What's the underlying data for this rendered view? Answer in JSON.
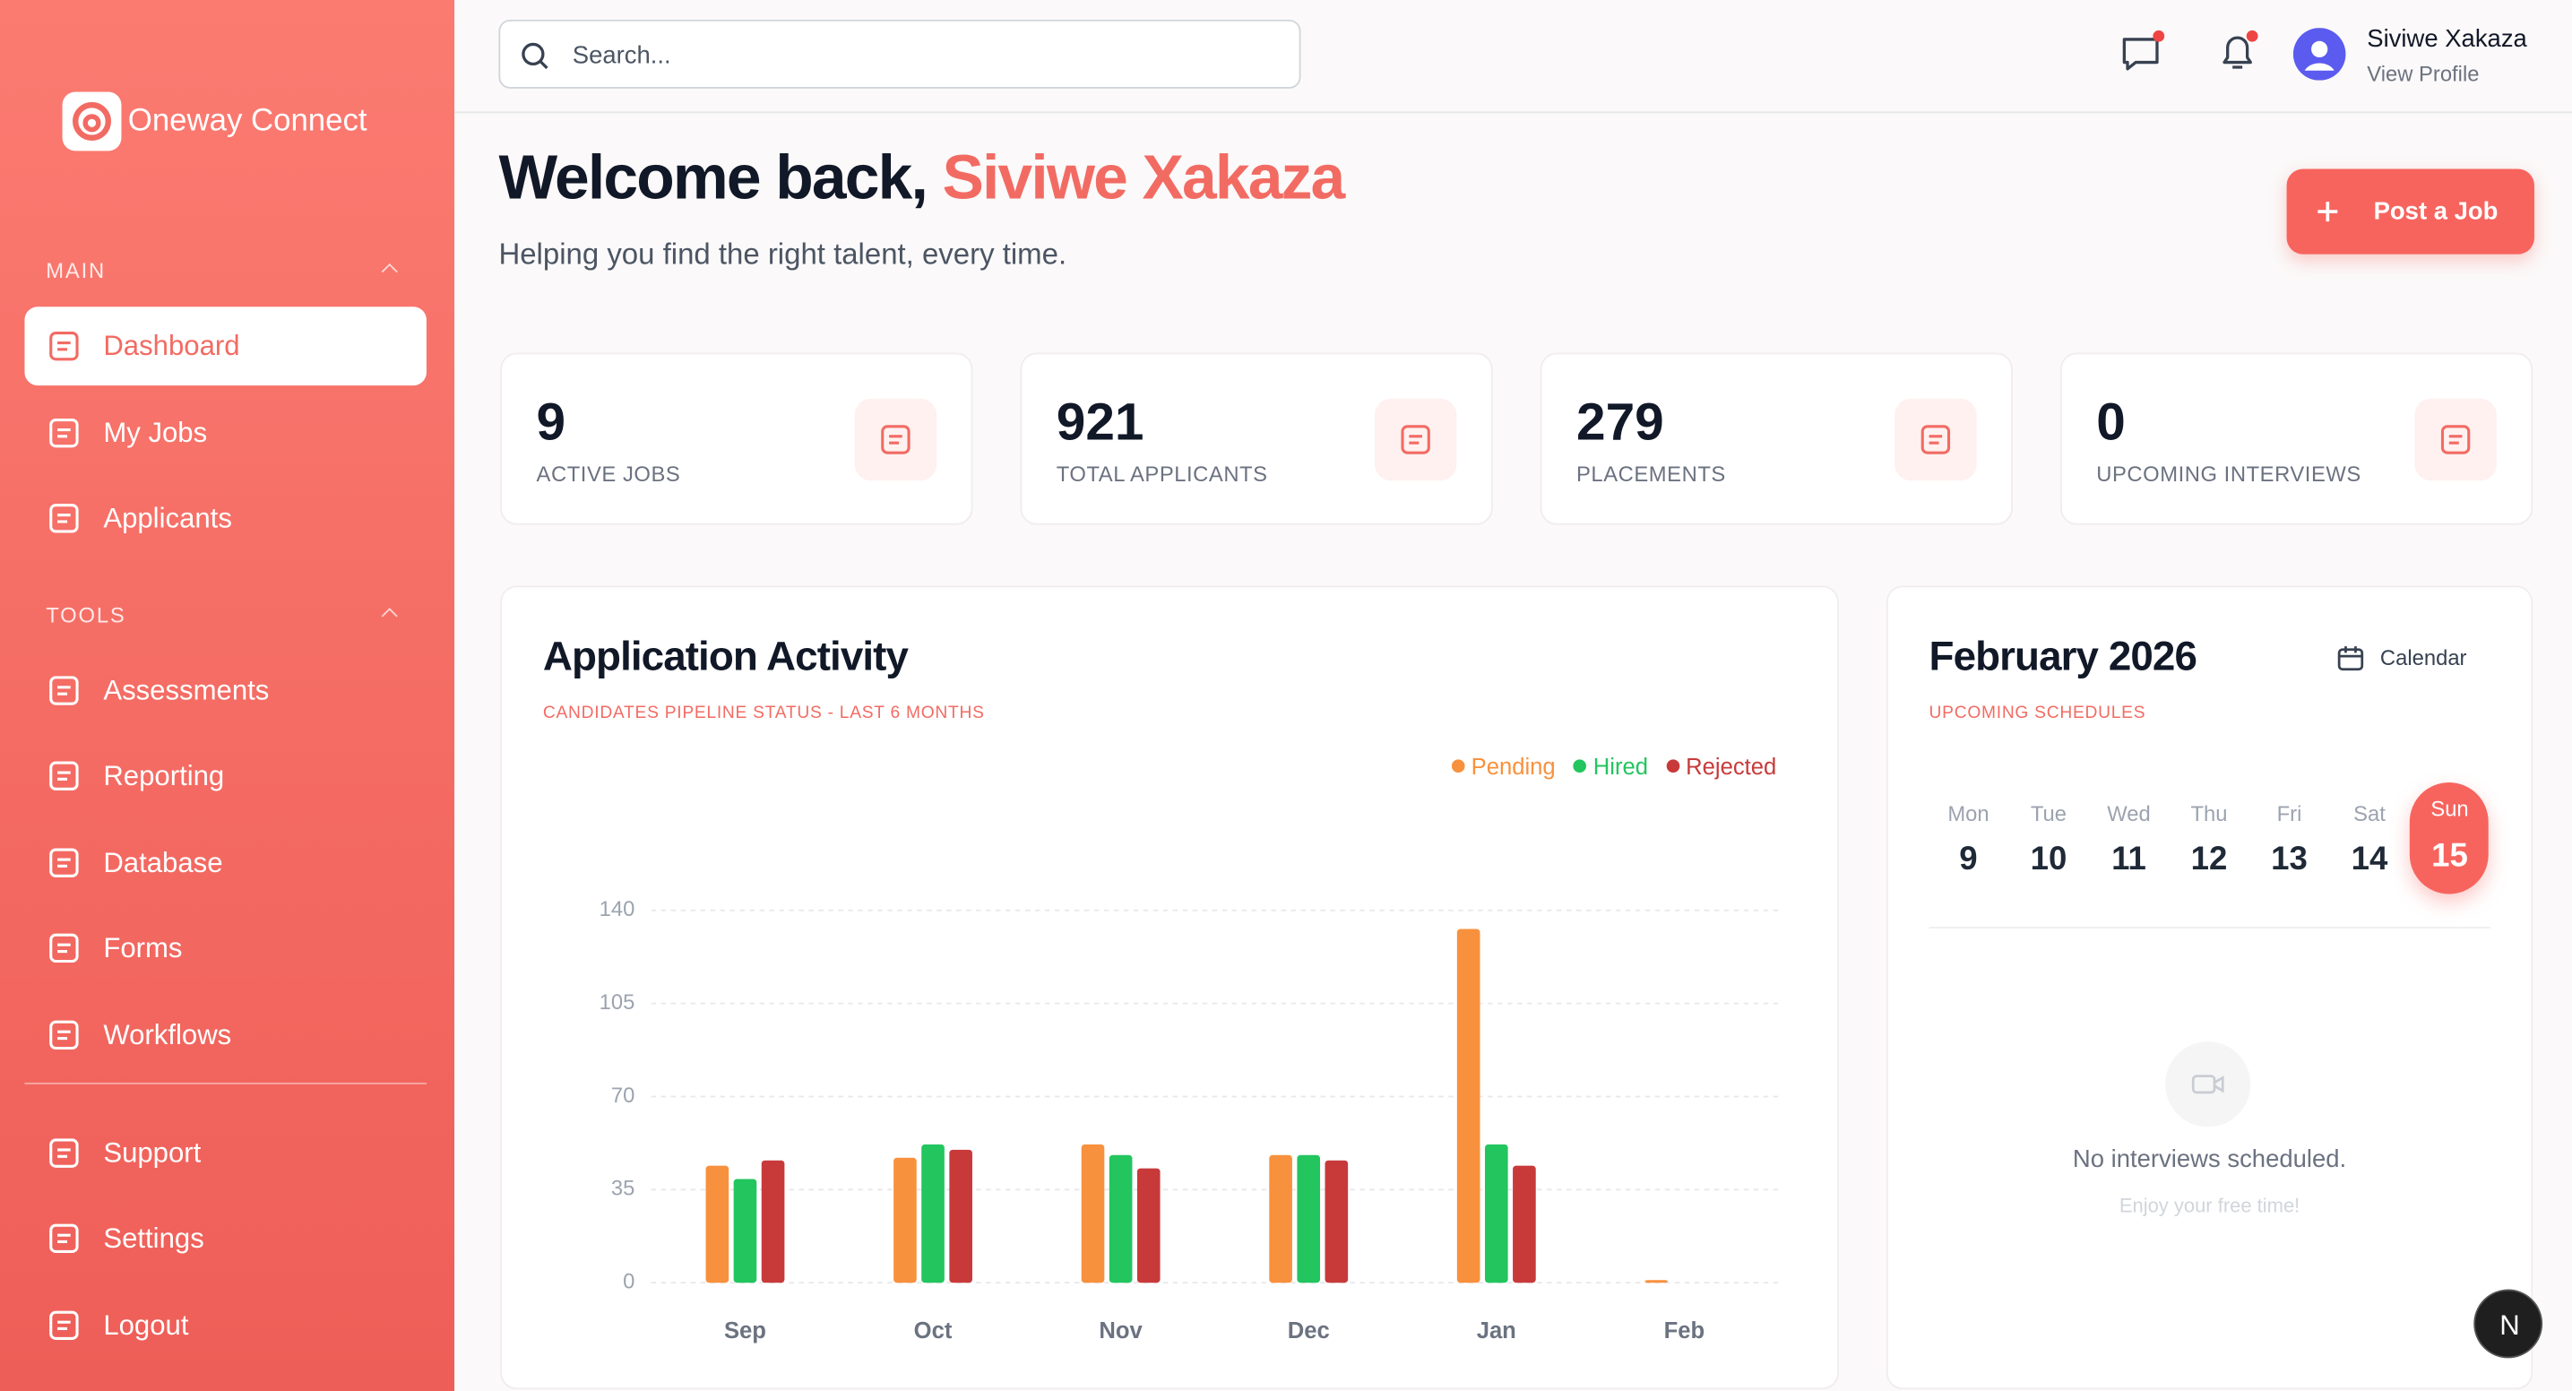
{
  "sidebar": {
    "brand": "Oneway Connect",
    "sections": [
      {
        "title": "MAIN",
        "items": [
          "Dashboard",
          "My Jobs",
          "Applicants"
        ]
      },
      {
        "title": "TOOLS",
        "items": [
          "Assessments",
          "Reporting",
          "Database",
          "Forms",
          "Workflows"
        ]
      }
    ],
    "footer_items": [
      "Support",
      "Settings",
      "Logout"
    ]
  },
  "header": {
    "search_placeholder": "Search...",
    "user_name": "Siviwe Xakaza",
    "user_link": "View Profile"
  },
  "welcome": {
    "greeting": "Welcome back,",
    "name": "Siviwe Xakaza",
    "subtitle": "Helping you find the right talent, every time.",
    "button": "Post a Job"
  },
  "stats": [
    {
      "value": 9,
      "label": "ACTIVE JOBS"
    },
    {
      "value": 921,
      "label": "TOTAL APPLICANTS"
    },
    {
      "value": 279,
      "label": "PLACEMENTS"
    },
    {
      "value": 0,
      "label": "UPCOMING INTERVIEWS"
    }
  ],
  "chart_data": {
    "type": "bar",
    "title": "Application Activity",
    "subtitle": "CANDIDATES PIPELINE STATUS - LAST 6 MONTHS",
    "categories": [
      "Sep",
      "Oct",
      "Nov",
      "Dec",
      "Jan",
      "Feb"
    ],
    "series": [
      {
        "name": "Pending",
        "color": "#f8913d",
        "values": [
          44,
          47,
          52,
          48,
          133,
          1
        ]
      },
      {
        "name": "Hired",
        "color": "#22c55e",
        "values": [
          39,
          52,
          48,
          48,
          52,
          0
        ]
      },
      {
        "name": "Rejected",
        "color": "#c83a3a",
        "values": [
          46,
          50,
          43,
          46,
          44,
          0
        ]
      }
    ],
    "ylim": [
      0,
      140
    ],
    "yticks": [
      0,
      35,
      70,
      105,
      140
    ],
    "grid": true,
    "legend": "top-right"
  },
  "calendar": {
    "title": "February 2026",
    "button": "Calendar",
    "subtitle": "UPCOMING SCHEDULES",
    "days": [
      {
        "weekday": "Mon",
        "date": 9
      },
      {
        "weekday": "Tue",
        "date": 10
      },
      {
        "weekday": "Wed",
        "date": 11
      },
      {
        "weekday": "Thu",
        "date": 12
      },
      {
        "weekday": "Fri",
        "date": 13
      },
      {
        "weekday": "Sat",
        "date": 14
      },
      {
        "weekday": "Sun",
        "date": 15,
        "selected": true
      }
    ],
    "empty_title": "No interviews scheduled.",
    "empty_subtitle": "Enjoy your free time!"
  },
  "dev_badge": "N"
}
